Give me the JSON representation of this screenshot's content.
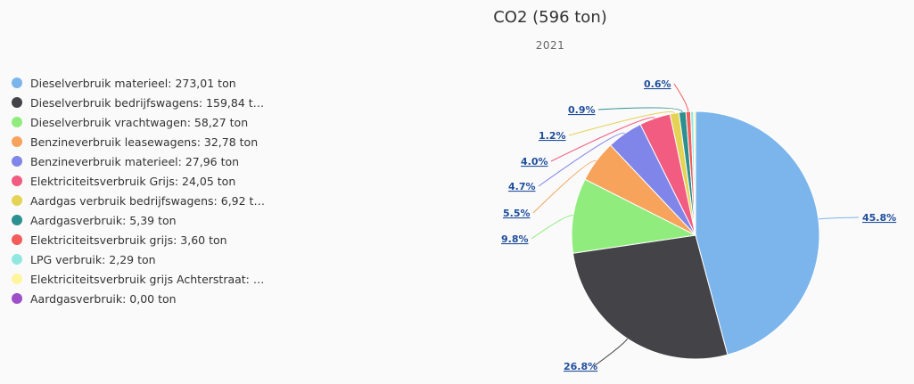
{
  "chart_data": {
    "type": "pie",
    "title": "CO2 (596 ton)",
    "subtitle": "2021",
    "legend_position": "left",
    "slices": [
      {
        "legend": "Dieselverbruik materieel: 273,01 ton",
        "value": 273.01,
        "label": "45.8%",
        "color": "#7cb5ec"
      },
      {
        "legend": "Dieselverbruik bedrijfswagens: 159,84 t…",
        "value": 159.84,
        "label": "26.8%",
        "color": "#434348"
      },
      {
        "legend": "Dieselverbruik vrachtwagen: 58,27 ton",
        "value": 58.27,
        "label": "9.8%",
        "color": "#90ed7d"
      },
      {
        "legend": "Benzineverbruik leasewagens: 32,78 ton",
        "value": 32.78,
        "label": "5.5%",
        "color": "#f7a35c"
      },
      {
        "legend": "Benzineverbruik materieel: 27,96 ton",
        "value": 27.96,
        "label": "4.7%",
        "color": "#8085e9"
      },
      {
        "legend": "Elektriciteitsverbruik Grijs: 24,05 ton",
        "value": 24.05,
        "label": "4.0%",
        "color": "#f15c80"
      },
      {
        "legend": "Aardgas verbruik bedrijfswagens: 6,92 t…",
        "value": 6.92,
        "label": "1.2%",
        "color": "#e4d354"
      },
      {
        "legend": "Aardgasverbruik: 5,39 ton",
        "value": 5.39,
        "label": "0.9%",
        "color": "#2b908f"
      },
      {
        "legend": "Elektriciteitsverbruik grijs: 3,60 ton",
        "value": 3.6,
        "label": "0.6%",
        "color": "#f45b5b"
      },
      {
        "legend": "LPG verbruik: 2,29 ton",
        "value": 2.29,
        "label": "",
        "color": "#91e8e1"
      },
      {
        "legend": "Elektriciteitsverbruik grijs Achterstraat: …",
        "value": 1.5,
        "label": "",
        "color": "#fff59d"
      },
      {
        "legend": "Aardgasverbruik: 0,00 ton",
        "value": 0.0,
        "label": "",
        "color": "#9c4fc7"
      }
    ]
  }
}
